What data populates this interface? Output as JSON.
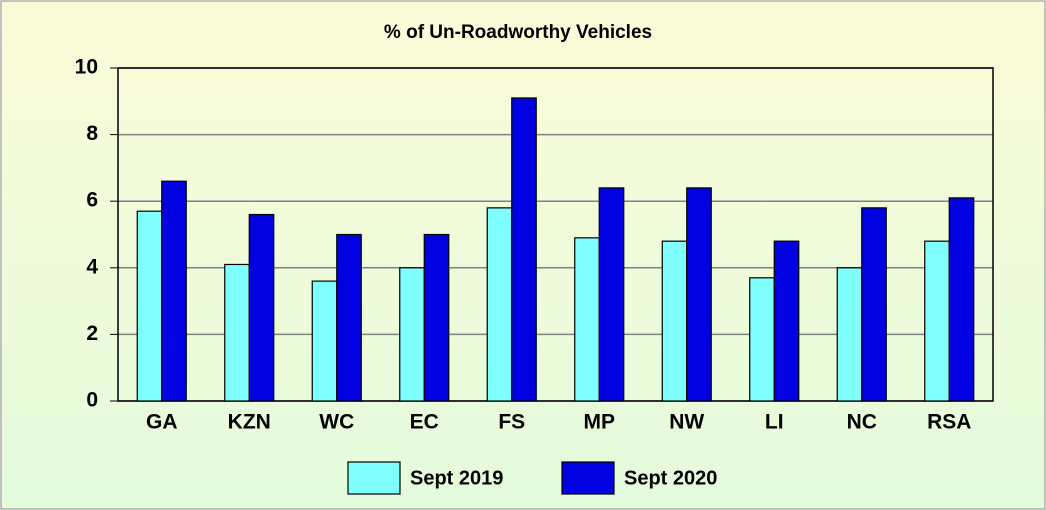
{
  "chart_data": {
    "type": "bar",
    "title": "% of Un-Roadworthy Vehicles",
    "categories": [
      "GA",
      "KZN",
      "WC",
      "EC",
      "FS",
      "MP",
      "NW",
      "LI",
      "NC",
      "RSA"
    ],
    "series": [
      {
        "name": "Sept 2019",
        "color": "#80ffff",
        "values": [
          5.7,
          4.1,
          3.6,
          4.0,
          5.8,
          4.9,
          4.8,
          3.7,
          4.0,
          4.8
        ]
      },
      {
        "name": "Sept 2020",
        "color": "#0000e0",
        "values": [
          6.6,
          5.6,
          5.0,
          5.0,
          9.1,
          6.4,
          6.4,
          4.8,
          5.8,
          6.1
        ]
      }
    ],
    "ylim": [
      0,
      10
    ],
    "yticks": [
      0,
      2,
      4,
      6,
      8,
      10
    ],
    "grid": true,
    "legend": "bottom"
  }
}
